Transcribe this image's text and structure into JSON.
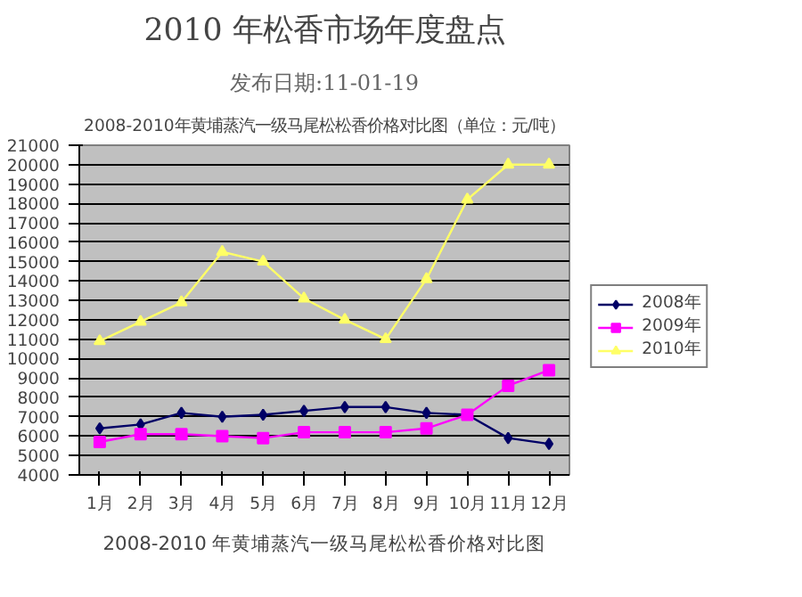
{
  "chart_data": {
    "type": "line",
    "title": "2010 年松香市场年度盘点",
    "subtitle": "发布日期:11-01-19",
    "annotations": [
      "2008-2010年黄埔蒸汽一级马尾松松香价格对比图（单位：元/吨）",
      "2008-2010 年黄埔蒸汽一级马尾松松香价格对比图"
    ],
    "categories": [
      "1月",
      "2月",
      "3月",
      "4月",
      "5月",
      "6月",
      "7月",
      "8月",
      "9月",
      "10月",
      "11月",
      "12月"
    ],
    "series": [
      {
        "name": "2008年",
        "color": "#000066",
        "marker": "diamond",
        "values": [
          6400,
          6600,
          7200,
          7000,
          7100,
          7300,
          7500,
          7500,
          7200,
          7100,
          5900,
          5600
        ]
      },
      {
        "name": "2009年",
        "color": "#ff00ff",
        "marker": "square",
        "values": [
          5700,
          6100,
          6100,
          6000,
          5900,
          6200,
          6200,
          6200,
          6400,
          7100,
          8600,
          9400
        ]
      },
      {
        "name": "2010年",
        "color": "#ffff66",
        "marker": "triangle",
        "values": [
          10900,
          11900,
          12900,
          15500,
          15000,
          13100,
          12000,
          11000,
          14100,
          18200,
          20000,
          20000
        ]
      }
    ],
    "ylim": [
      4000,
      21000
    ],
    "yticks": [
      4000,
      5000,
      6000,
      7000,
      8000,
      9000,
      10000,
      11000,
      12000,
      13000,
      14000,
      15000,
      16000,
      17000,
      18000,
      19000,
      20000,
      21000
    ],
    "grid": "y",
    "legend": "right"
  }
}
